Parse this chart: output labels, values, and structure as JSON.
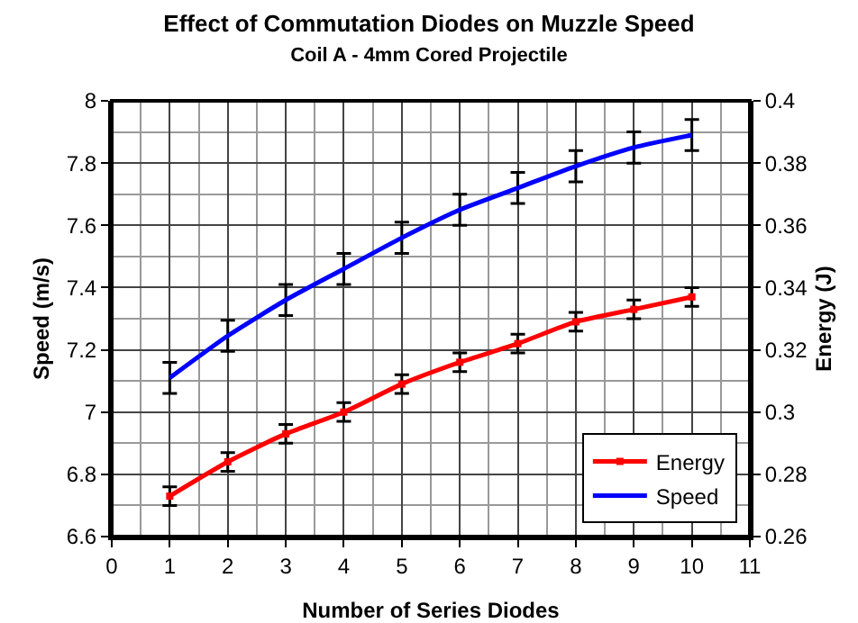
{
  "chart_data": {
    "type": "line",
    "title": "Effect of Commutation Diodes on Muzzle Speed",
    "subtitle": "Coil A - 4mm Cored Projectile",
    "xlabel": "Number of Series Diodes",
    "ylabel": "Speed (m/s)",
    "y2label": "Energy (J)",
    "x": [
      1,
      2,
      3,
      4,
      5,
      6,
      7,
      8,
      9,
      10
    ],
    "series": [
      {
        "name": "Energy",
        "color": "#ff0000",
        "axis": "y2",
        "marker": "square",
        "values": [
          0.273,
          0.284,
          0.293,
          0.3,
          0.309,
          0.316,
          0.322,
          0.329,
          0.333,
          0.337
        ],
        "errors": [
          0.003,
          0.003,
          0.003,
          0.003,
          0.003,
          0.003,
          0.003,
          0.003,
          0.003,
          0.003
        ]
      },
      {
        "name": "Speed",
        "color": "#0000ff",
        "values": [
          7.11,
          7.245,
          7.36,
          7.46,
          7.56,
          7.65,
          7.72,
          7.79,
          7.85,
          7.89
        ],
        "errors": [
          0.05,
          0.05,
          0.05,
          0.05,
          0.05,
          0.05,
          0.05,
          0.05,
          0.05,
          0.05
        ]
      }
    ],
    "xlim": [
      0,
      11
    ],
    "xticks": [
      0,
      1,
      2,
      3,
      4,
      5,
      6,
      7,
      8,
      9,
      10,
      11
    ],
    "ylim": [
      6.6,
      8
    ],
    "yticks": [
      6.6,
      6.8,
      7,
      7.2,
      7.4,
      7.6,
      7.8,
      8
    ],
    "y2lim": [
      0.26,
      0.4
    ],
    "y2ticks": [
      0.26,
      0.28,
      0.3,
      0.32,
      0.34,
      0.36,
      0.38,
      0.4
    ],
    "grid": true,
    "legend": "bottom right",
    "line_style": "solid"
  }
}
